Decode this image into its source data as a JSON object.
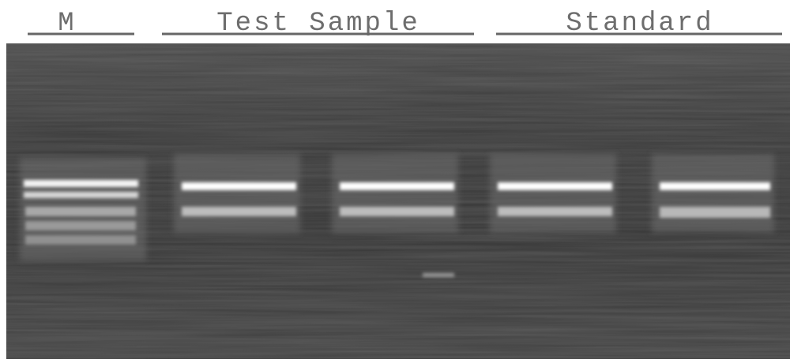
{
  "labels": [
    "M",
    "Test Sample",
    "Standard"
  ]
}
